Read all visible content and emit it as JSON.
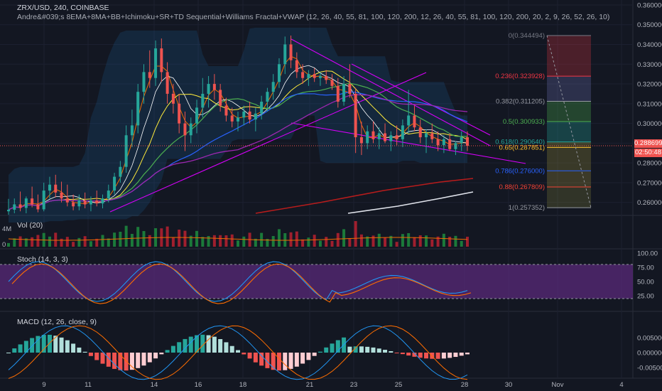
{
  "header": {
    "symbol_line": "ZRX/USD, 240, COINBASE",
    "indicator_line": "Andre&#039;s 8EMA+8MA+BB+Ichimoku+SR+TD Sequential+Williams Fractal+VWAP (12, 26, 40, 55, 81, 100, 120, 200, 12, 26, 40, 55, 81, 100, 120, 200, 20, 2, 9, 26, 52, 26, 10)"
  },
  "price_badge": {
    "price": "0.288699",
    "timer": "02:50:48",
    "color": "#ef5350"
  },
  "fib_levels": [
    {
      "ratio": "0",
      "label": "0(0.344494)",
      "value": 0.344494,
      "color": "#787b86"
    },
    {
      "ratio": "0.236",
      "label": "0.236(0.323928)",
      "value": 0.323928,
      "color": "#f23645"
    },
    {
      "ratio": "0.382",
      "label": "0.382(0.311205)",
      "value": 0.311205,
      "color": "#9598a1"
    },
    {
      "ratio": "0.5",
      "label": "0.5(0.300933)",
      "value": 0.300933,
      "color": "#4caf50"
    },
    {
      "ratio": "0.618",
      "label": "0.618(0.290640)",
      "value": 0.29064,
      "color": "#26a69a"
    },
    {
      "ratio": "0.65",
      "label": "0.65(0.287851)",
      "value": 0.287851,
      "color": "#fbc02d"
    },
    {
      "ratio": "0.786",
      "label": "0.786(0.276000)",
      "value": 0.276,
      "color": "#2962ff"
    },
    {
      "ratio": "0.88",
      "label": "0.88(0.267809)",
      "value": 0.267809,
      "color": "#f44336"
    },
    {
      "ratio": "1",
      "label": "1(0.257352)",
      "value": 0.257352,
      "color": "#9598a1"
    }
  ],
  "panes": {
    "volume": {
      "label": "Vol (20)",
      "ticks": [
        "4M",
        "0"
      ]
    },
    "stoch": {
      "label": "Stoch (14, 3, 3)",
      "ticks": [
        "100.00",
        "75.00",
        "50.00",
        "25.00"
      ]
    },
    "macd": {
      "label": "MACD (12, 26, close, 9)",
      "ticks": [
        "0.005000",
        "0.000000",
        "-0.005000"
      ]
    }
  },
  "chart_data": {
    "type": "candlestick",
    "price_ticks": [
      "0.360000",
      "0.350000",
      "0.340000",
      "0.330000",
      "0.320000",
      "0.310000",
      "0.300000",
      "0.290000",
      "0.280000",
      "0.270000",
      "0.260000"
    ],
    "ylim": [
      0.2545,
      0.3625
    ],
    "x_ticks": [
      "9",
      "11",
      "14",
      "16",
      "18",
      "21",
      "23",
      "25",
      "28",
      "30",
      "Nov",
      "4"
    ],
    "candles": [
      {
        "o": 0.2555,
        "h": 0.2618,
        "l": 0.2538,
        "c": 0.2563
      },
      {
        "o": 0.2563,
        "h": 0.262,
        "l": 0.2545,
        "c": 0.259
      },
      {
        "o": 0.259,
        "h": 0.2655,
        "l": 0.2555,
        "c": 0.2572
      },
      {
        "o": 0.2572,
        "h": 0.263,
        "l": 0.2545,
        "c": 0.262
      },
      {
        "o": 0.262,
        "h": 0.268,
        "l": 0.2575,
        "c": 0.259
      },
      {
        "o": 0.259,
        "h": 0.264,
        "l": 0.255,
        "c": 0.2565
      },
      {
        "o": 0.2565,
        "h": 0.27,
        "l": 0.2555,
        "c": 0.266
      },
      {
        "o": 0.266,
        "h": 0.273,
        "l": 0.262,
        "c": 0.269
      },
      {
        "o": 0.269,
        "h": 0.274,
        "l": 0.2625,
        "c": 0.265
      },
      {
        "o": 0.265,
        "h": 0.2705,
        "l": 0.26,
        "c": 0.262
      },
      {
        "o": 0.262,
        "h": 0.269,
        "l": 0.258,
        "c": 0.26
      },
      {
        "o": 0.26,
        "h": 0.264,
        "l": 0.256,
        "c": 0.258
      },
      {
        "o": 0.258,
        "h": 0.264,
        "l": 0.256,
        "c": 0.261
      },
      {
        "o": 0.261,
        "h": 0.265,
        "l": 0.257,
        "c": 0.259
      },
      {
        "o": 0.259,
        "h": 0.263,
        "l": 0.2555,
        "c": 0.261
      },
      {
        "o": 0.261,
        "h": 0.266,
        "l": 0.258,
        "c": 0.2595
      },
      {
        "o": 0.2595,
        "h": 0.264,
        "l": 0.257,
        "c": 0.262
      },
      {
        "o": 0.262,
        "h": 0.269,
        "l": 0.26,
        "c": 0.266
      },
      {
        "o": 0.266,
        "h": 0.275,
        "l": 0.264,
        "c": 0.273
      },
      {
        "o": 0.273,
        "h": 0.281,
        "l": 0.27,
        "c": 0.278
      },
      {
        "o": 0.278,
        "h": 0.299,
        "l": 0.275,
        "c": 0.294
      },
      {
        "o": 0.294,
        "h": 0.307,
        "l": 0.288,
        "c": 0.299
      },
      {
        "o": 0.299,
        "h": 0.32,
        "l": 0.295,
        "c": 0.316
      },
      {
        "o": 0.316,
        "h": 0.33,
        "l": 0.31,
        "c": 0.326
      },
      {
        "o": 0.326,
        "h": 0.337,
        "l": 0.318,
        "c": 0.323
      },
      {
        "o": 0.323,
        "h": 0.342,
        "l": 0.319,
        "c": 0.338
      },
      {
        "o": 0.338,
        "h": 0.343,
        "l": 0.321,
        "c": 0.326
      },
      {
        "o": 0.326,
        "h": 0.331,
        "l": 0.31,
        "c": 0.315
      },
      {
        "o": 0.315,
        "h": 0.32,
        "l": 0.305,
        "c": 0.31
      },
      {
        "o": 0.31,
        "h": 0.315,
        "l": 0.295,
        "c": 0.3
      },
      {
        "o": 0.3,
        "h": 0.306,
        "l": 0.286,
        "c": 0.294
      },
      {
        "o": 0.294,
        "h": 0.303,
        "l": 0.29,
        "c": 0.3
      },
      {
        "o": 0.3,
        "h": 0.312,
        "l": 0.295,
        "c": 0.308
      },
      {
        "o": 0.308,
        "h": 0.323,
        "l": 0.303,
        "c": 0.315
      },
      {
        "o": 0.315,
        "h": 0.324,
        "l": 0.308,
        "c": 0.32
      },
      {
        "o": 0.32,
        "h": 0.325,
        "l": 0.312,
        "c": 0.317
      },
      {
        "o": 0.317,
        "h": 0.32,
        "l": 0.306,
        "c": 0.309
      },
      {
        "o": 0.309,
        "h": 0.313,
        "l": 0.301,
        "c": 0.304
      },
      {
        "o": 0.304,
        "h": 0.308,
        "l": 0.298,
        "c": 0.301
      },
      {
        "o": 0.301,
        "h": 0.306,
        "l": 0.296,
        "c": 0.303
      },
      {
        "o": 0.303,
        "h": 0.309,
        "l": 0.299,
        "c": 0.306
      },
      {
        "o": 0.306,
        "h": 0.311,
        "l": 0.3,
        "c": 0.302
      },
      {
        "o": 0.302,
        "h": 0.308,
        "l": 0.296,
        "c": 0.305
      },
      {
        "o": 0.305,
        "h": 0.314,
        "l": 0.302,
        "c": 0.311
      },
      {
        "o": 0.311,
        "h": 0.318,
        "l": 0.306,
        "c": 0.316
      },
      {
        "o": 0.316,
        "h": 0.325,
        "l": 0.312,
        "c": 0.321
      },
      {
        "o": 0.321,
        "h": 0.333,
        "l": 0.318,
        "c": 0.33
      },
      {
        "o": 0.33,
        "h": 0.344,
        "l": 0.325,
        "c": 0.34
      },
      {
        "o": 0.34,
        "h": 0.3445,
        "l": 0.328,
        "c": 0.332
      },
      {
        "o": 0.332,
        "h": 0.336,
        "l": 0.323,
        "c": 0.326
      },
      {
        "o": 0.326,
        "h": 0.33,
        "l": 0.32,
        "c": 0.323
      },
      {
        "o": 0.323,
        "h": 0.327,
        "l": 0.319,
        "c": 0.325
      },
      {
        "o": 0.325,
        "h": 0.328,
        "l": 0.321,
        "c": 0.323
      },
      {
        "o": 0.323,
        "h": 0.326,
        "l": 0.319,
        "c": 0.324
      },
      {
        "o": 0.324,
        "h": 0.327,
        "l": 0.32,
        "c": 0.322
      },
      {
        "o": 0.322,
        "h": 0.325,
        "l": 0.317,
        "c": 0.319
      },
      {
        "o": 0.319,
        "h": 0.323,
        "l": 0.308,
        "c": 0.311
      },
      {
        "o": 0.311,
        "h": 0.324,
        "l": 0.309,
        "c": 0.32
      },
      {
        "o": 0.32,
        "h": 0.33,
        "l": 0.313,
        "c": 0.315
      },
      {
        "o": 0.315,
        "h": 0.318,
        "l": 0.285,
        "c": 0.293
      },
      {
        "o": 0.293,
        "h": 0.301,
        "l": 0.284,
        "c": 0.29
      },
      {
        "o": 0.29,
        "h": 0.299,
        "l": 0.287,
        "c": 0.296
      },
      {
        "o": 0.296,
        "h": 0.301,
        "l": 0.29,
        "c": 0.292
      },
      {
        "o": 0.292,
        "h": 0.298,
        "l": 0.287,
        "c": 0.295
      },
      {
        "o": 0.295,
        "h": 0.3,
        "l": 0.29,
        "c": 0.291
      },
      {
        "o": 0.291,
        "h": 0.296,
        "l": 0.286,
        "c": 0.294
      },
      {
        "o": 0.294,
        "h": 0.299,
        "l": 0.289,
        "c": 0.292
      },
      {
        "o": 0.292,
        "h": 0.302,
        "l": 0.288,
        "c": 0.299
      },
      {
        "o": 0.299,
        "h": 0.317,
        "l": 0.295,
        "c": 0.304
      },
      {
        "o": 0.304,
        "h": 0.309,
        "l": 0.296,
        "c": 0.298
      },
      {
        "o": 0.298,
        "h": 0.302,
        "l": 0.29,
        "c": 0.293
      },
      {
        "o": 0.293,
        "h": 0.297,
        "l": 0.285,
        "c": 0.295
      },
      {
        "o": 0.295,
        "h": 0.3,
        "l": 0.29,
        "c": 0.292
      },
      {
        "o": 0.292,
        "h": 0.296,
        "l": 0.286,
        "c": 0.289
      },
      {
        "o": 0.289,
        "h": 0.294,
        "l": 0.285,
        "c": 0.292
      },
      {
        "o": 0.292,
        "h": 0.295,
        "l": 0.286,
        "c": 0.287
      },
      {
        "o": 0.287,
        "h": 0.291,
        "l": 0.284,
        "c": 0.29
      },
      {
        "o": 0.29,
        "h": 0.296,
        "l": 0.286,
        "c": 0.293
      },
      {
        "o": 0.293,
        "h": 0.296,
        "l": 0.286,
        "c": 0.2887
      }
    ]
  },
  "colors": {
    "up": "#26a69a",
    "down": "#ef5350",
    "bg": "#131722",
    "grid": "#1e2230",
    "stoch_band": "#5a2a7a"
  }
}
